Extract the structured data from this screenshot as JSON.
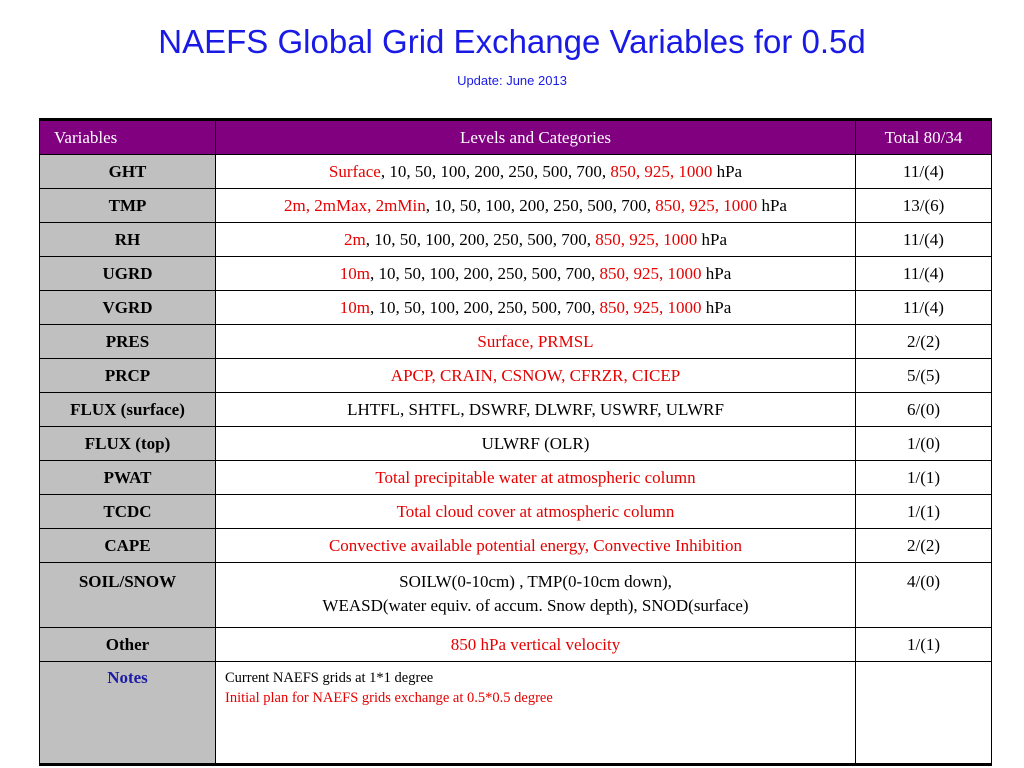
{
  "title": "NAEFS Global Grid Exchange Variables for 0.5d",
  "subtitle": "Update: June 2013",
  "colors": {
    "title": "#1a1ae6",
    "header_bg": "#800080",
    "label_bg": "#c0c0c0",
    "highlight": "#e60000",
    "notes_label": "#1c1ca8"
  },
  "table": {
    "headers": {
      "variables": "Variables",
      "levels": "Levels and Categories",
      "total": "Total  80/34"
    },
    "rows": [
      {
        "var": "GHT",
        "red1": "Surface",
        "black1": ", 10, 50, 100, 200, 250, 500, 700, ",
        "red2": "850, 925, 1000",
        "black2": " hPa",
        "total": "11/(4)"
      },
      {
        "var": "TMP",
        "red1": "2m, 2mMax, 2mMin",
        "black1": ", 10, 50, 100, 200, 250, 500, 700, ",
        "red2": "850, 925, 1000",
        "black2": " hPa",
        "total": "13/(6)"
      },
      {
        "var": "RH",
        "red1": "2m",
        "black1": ", 10, 50, 100, 200, 250, 500, 700, ",
        "red2": "850, 925, 1000",
        "black2": " hPa",
        "total": "11/(4)"
      },
      {
        "var": "UGRD",
        "red1": "10m",
        "black1": ", 10, 50, 100, 200, 250, 500, 700, ",
        "red2": "850, 925, 1000",
        "black2": " hPa",
        "total": "11/(4)"
      },
      {
        "var": "VGRD",
        "red1": "10m",
        "black1": ", 10, 50, 100, 200, 250, 500, 700, ",
        "red2": "850, 925, 1000",
        "black2": " hPa",
        "total": "11/(4)"
      },
      {
        "var": "PRES",
        "red1": "Surface, PRMSL",
        "black1": "",
        "red2": "",
        "black2": "",
        "total": "2/(2)"
      },
      {
        "var": "PRCP",
        "red1": "APCP, CRAIN, CSNOW, CFRZR, CICEP",
        "black1": "",
        "red2": "",
        "black2": "",
        "total": "5/(5)"
      },
      {
        "var": "FLUX (surface)",
        "red1": "",
        "black1": "LHTFL, SHTFL, DSWRF, DLWRF, USWRF, ULWRF",
        "red2": "",
        "black2": "",
        "total": "6/(0)"
      },
      {
        "var": "FLUX (top)",
        "red1": "",
        "black1": "ULWRF (OLR)",
        "red2": "",
        "black2": "",
        "total": "1/(0)"
      },
      {
        "var": "PWAT",
        "red1": "Total precipitable water at atmospheric column",
        "black1": "",
        "red2": "",
        "black2": "",
        "total": "1/(1)"
      },
      {
        "var": "TCDC",
        "red1": "Total cloud cover at atmospheric column",
        "black1": "",
        "red2": "",
        "black2": "",
        "total": "1/(1)"
      },
      {
        "var": "CAPE",
        "red1": "Convective available potential energy, Convective Inhibition",
        "black1": "",
        "red2": "",
        "black2": "",
        "total": "2/(2)"
      }
    ],
    "soil": {
      "var": "SOIL/SNOW",
      "line1": "SOILW(0-10cm) , TMP(0-10cm down),",
      "line2": "WEASD(water equiv. of accum. Snow depth),  SNOD(surface)",
      "total": "4/(0)"
    },
    "other": {
      "var": "Other",
      "levels": "850 hPa  vertical velocity",
      "total": "1/(1)"
    },
    "notes": {
      "label": "Notes",
      "line1": "Current NAEFS grids at 1*1 degree",
      "line2": "Initial plan for NAEFS grids exchange at 0.5*0.5 degree",
      "total": ""
    }
  }
}
